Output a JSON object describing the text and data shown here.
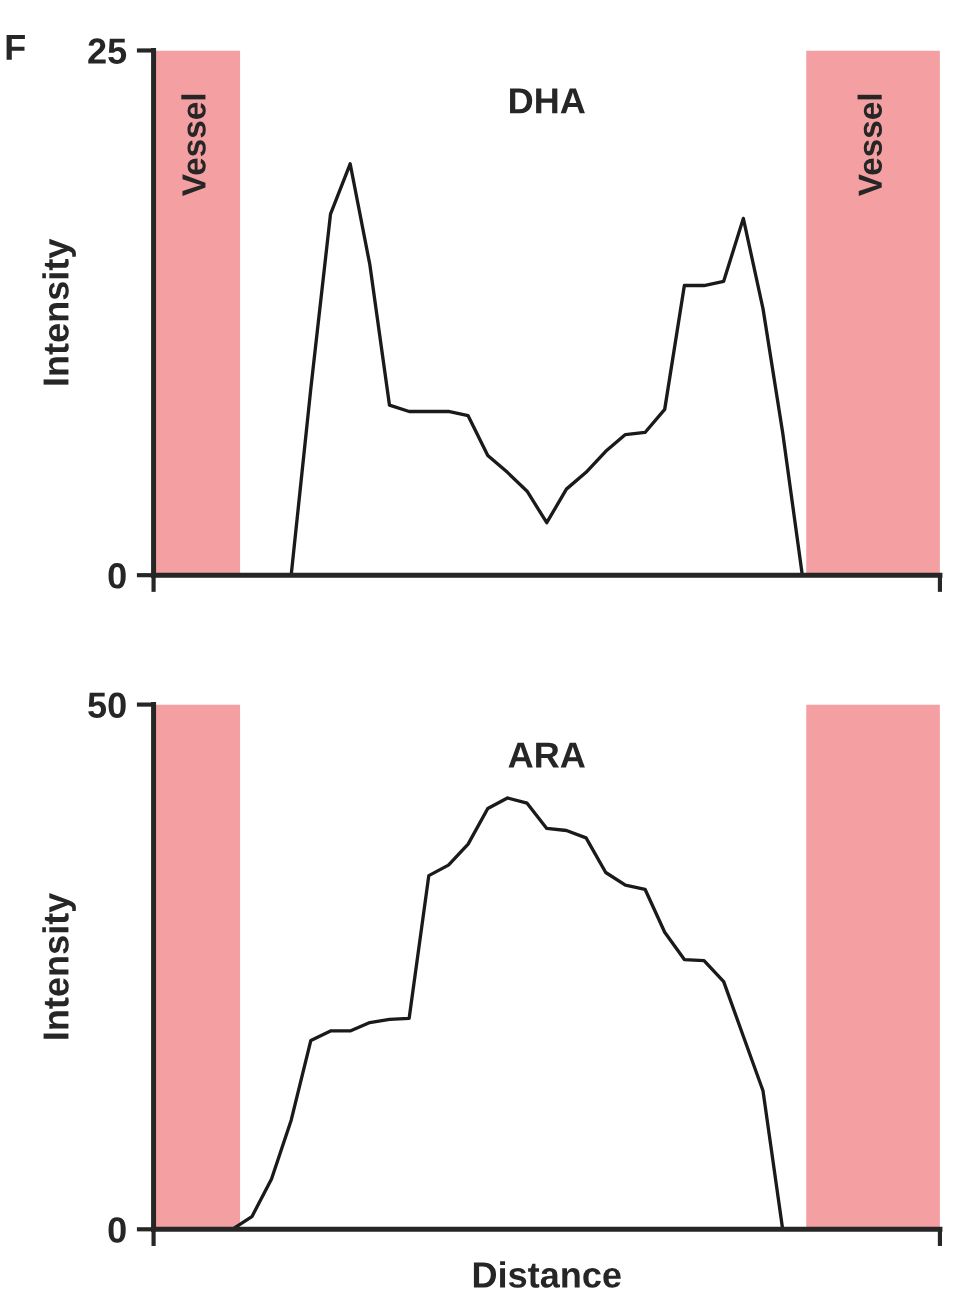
{
  "chart_data": [
    {
      "type": "line",
      "title": "DHA",
      "ylabel": "Intensity",
      "annotations": [
        "F",
        "Vessel",
        "Vessel"
      ],
      "tick_labels": "y",
      "ylim": [
        0,
        25
      ],
      "yticks": [
        0,
        25
      ],
      "categories": [
        null,
        null,
        null,
        null,
        null,
        null,
        null,
        null,
        null,
        null,
        null,
        null,
        null,
        null,
        null,
        null,
        null,
        null,
        null,
        null,
        null,
        null,
        null,
        null,
        null,
        null,
        null,
        null,
        null,
        null,
        null,
        null,
        null,
        null,
        null,
        null,
        null,
        null,
        null,
        null,
        null
      ],
      "series": [
        {
          "color": "#1a1a1a",
          "values": [
            null,
            null,
            null,
            null,
            null,
            null,
            null,
            0,
            8.9,
            17.2,
            19.6,
            14.8,
            8.1,
            7.8,
            7.8,
            7.8,
            7.6,
            5.7,
            4.9,
            4.0,
            2.5,
            4.1,
            4.9,
            5.9,
            6.7,
            6.8,
            7.9,
            13.8,
            13.8,
            14.0,
            17.0,
            12.7,
            6.8,
            0,
            null,
            null,
            null,
            null,
            null,
            null,
            null
          ]
        }
      ]
    },
    {
      "type": "line",
      "title": "ARA",
      "ylabel": "Intensity",
      "xlabel": "Distance",
      "tick_labels": "y",
      "ylim": [
        0,
        50
      ],
      "yticks": [
        0,
        50
      ],
      "categories": [
        null,
        null,
        null,
        null,
        null,
        null,
        null,
        null,
        null,
        null,
        null,
        null,
        null,
        null,
        null,
        null,
        null,
        null,
        null,
        null,
        null,
        null,
        null,
        null,
        null,
        null,
        null,
        null,
        null,
        null,
        null,
        null,
        null,
        null,
        null,
        null,
        null,
        null,
        null,
        null,
        null
      ],
      "series": [
        {
          "color": "#1a1a1a",
          "values": [
            null,
            null,
            null,
            null,
            0,
            1.2,
            4.8,
            10.4,
            18.0,
            18.9,
            18.9,
            19.7,
            20.0,
            20.1,
            33.7,
            34.7,
            36.7,
            40.1,
            41.1,
            40.6,
            38.2,
            38.0,
            37.3,
            34.0,
            32.8,
            32.4,
            28.3,
            25.7,
            25.6,
            23.6,
            18.4,
            13.2,
            0,
            null,
            null,
            null,
            null,
            null,
            null,
            null,
            null
          ]
        }
      ]
    }
  ]
}
